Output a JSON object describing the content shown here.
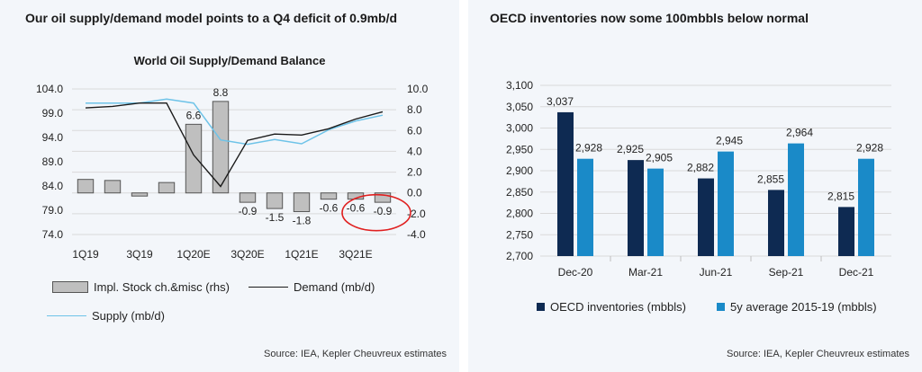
{
  "left": {
    "headline": "Our oil supply/demand model points to a Q4 deficit of 0.9mb/d",
    "source": "Source: IEA, Kepler Cheuvreux estimates",
    "legend": {
      "bar": "Impl. Stock ch.&misc (rhs)",
      "demand": "Demand (mb/d)",
      "supply": "Supply (mb/d)"
    },
    "colors": {
      "bar_fill": "#bfbfbf",
      "bar_stroke": "#555555",
      "demand": "#1a1a1a",
      "supply": "#6ec3e8",
      "highlight": "#e02020"
    }
  },
  "right": {
    "headline": "OECD inventories now some 100mbbls below normal",
    "source": "Source: IEA, Kepler Cheuvreux estimates",
    "colors": {
      "inventories": "#0e2a52",
      "avg": "#1a8ac8"
    }
  },
  "chart_data": [
    {
      "type": "bar",
      "title": "World Oil Supply/Demand Balance",
      "x_tick_labels": [
        "1Q19",
        "3Q19",
        "1Q20E",
        "3Q20E",
        "1Q21E",
        "3Q21E"
      ],
      "quarters": 12,
      "bar_labels": [
        "",
        "",
        "",
        "",
        "6.6",
        "8.8",
        "-0.9",
        "-1.5",
        "-1.8",
        "-0.6",
        "-0.6",
        "-0.9"
      ],
      "series": [
        {
          "name": "Impl. Stock ch.&misc (rhs)",
          "type": "bar",
          "axis": "right",
          "values": [
            1.3,
            1.2,
            -0.3,
            1.0,
            6.6,
            8.8,
            -0.9,
            -1.5,
            -1.8,
            -0.6,
            -0.6,
            -0.9
          ]
        },
        {
          "name": "Demand (mb/d)",
          "type": "line",
          "axis": "left",
          "values": [
            100.1,
            100.4,
            101.1,
            101.1,
            90.4,
            83.9,
            93.4,
            94.7,
            94.5,
            95.8,
            97.8,
            99.3
          ]
        },
        {
          "name": "Supply (mb/d)",
          "type": "line",
          "axis": "left",
          "values": [
            101.1,
            101.1,
            101.1,
            101.9,
            101.1,
            93.5,
            92.6,
            93.6,
            92.7,
            95.6,
            97.4,
            98.6
          ]
        }
      ],
      "y_left": {
        "min": 74.0,
        "max": 104.0,
        "ticks": [
          "74.0",
          "79.0",
          "84.0",
          "89.0",
          "94.0",
          "99.0",
          "104.0"
        ]
      },
      "y_right": {
        "min": -4.0,
        "max": 10.0,
        "ticks": [
          "-4.0",
          "-2.0",
          "0.0",
          "2.0",
          "4.0",
          "6.0",
          "8.0",
          "10.0"
        ]
      },
      "grid": "horizontal",
      "legend": "bottom"
    },
    {
      "type": "bar",
      "categories": [
        "Dec-20",
        "Mar-21",
        "Jun-21",
        "Sep-21",
        "Dec-21"
      ],
      "series": [
        {
          "name": "OECD inventories (mbbls)",
          "values": [
            3037,
            2925,
            2882,
            2855,
            2815
          ],
          "labels": [
            "3,037",
            "2,925",
            "2,882",
            "2,855",
            "2,815"
          ]
        },
        {
          "name": "5y average 2015-19 (mbbls)",
          "values": [
            2928,
            2905,
            2945,
            2964,
            2928
          ],
          "labels": [
            "2,928",
            "2,905",
            "2,945",
            "2,964",
            "2,928"
          ]
        }
      ],
      "ylim": [
        2700,
        3100
      ],
      "y_ticks": [
        "2,700",
        "2,750",
        "2,800",
        "2,850",
        "2,900",
        "2,950",
        "3,000",
        "3,050",
        "3,100"
      ],
      "grid": "horizontal",
      "legend": "bottom"
    }
  ]
}
